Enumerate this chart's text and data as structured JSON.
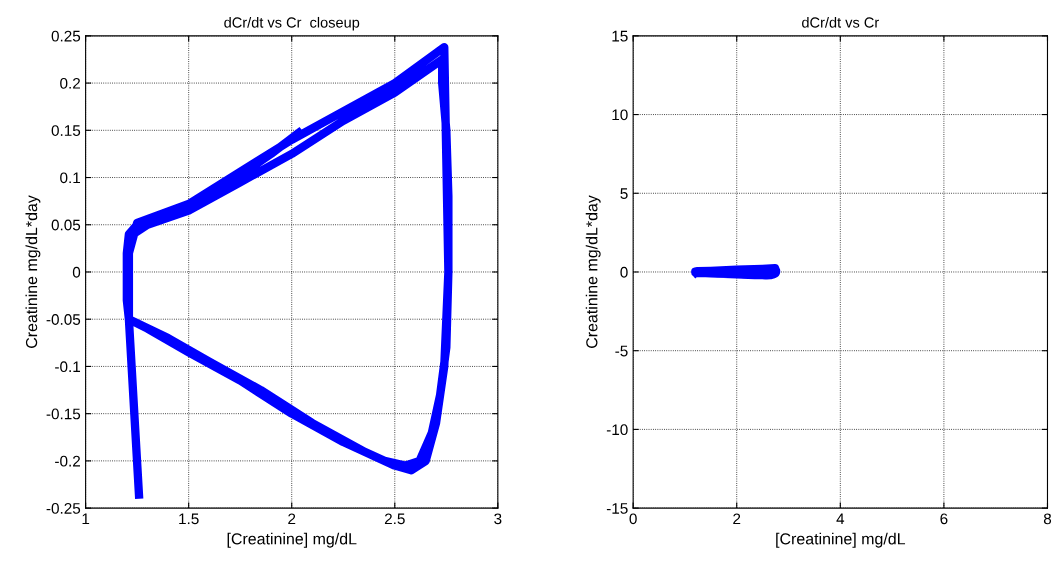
{
  "chart_data": [
    {
      "type": "line",
      "title": "dCr/dt vs Cr  closeup",
      "xlabel": "[Creatinine] mg/dL",
      "ylabel": "Creatinine mg/dL*day",
      "series": [
        {
          "color": "#0000ff",
          "x": [
            2.05,
            1.9,
            1.7,
            1.5,
            1.35,
            1.25,
            1.21,
            1.2,
            1.2,
            1.21,
            1.3,
            1.5,
            1.75,
            2.0,
            2.25,
            2.45,
            2.55,
            2.62,
            2.68,
            2.72,
            2.75,
            2.76,
            2.76,
            2.75,
            2.73,
            2.73,
            2.5,
            2.25,
            2.0,
            1.75,
            1.5,
            1.3,
            1.23,
            1.2,
            1.2,
            1.21,
            1.4,
            1.6,
            1.85,
            2.1,
            2.35,
            2.5,
            2.58,
            2.65,
            2.7,
            2.74,
            2.76,
            2.75,
            2.74,
            2.5,
            2.0,
            1.5,
            1.25,
            1.21,
            1.21,
            1.26
          ],
          "values": [
            0.15,
            0.125,
            0.095,
            0.07,
            0.057,
            0.05,
            0.04,
            0.02,
            -0.03,
            -0.05,
            -0.06,
            -0.085,
            -0.115,
            -0.15,
            -0.18,
            -0.2,
            -0.205,
            -0.2,
            -0.17,
            -0.13,
            -0.08,
            0.0,
            0.08,
            0.15,
            0.2,
            0.225,
            0.19,
            0.16,
            0.125,
            0.095,
            0.065,
            0.05,
            0.04,
            0.02,
            -0.03,
            -0.05,
            -0.07,
            -0.095,
            -0.125,
            -0.16,
            -0.19,
            -0.205,
            -0.21,
            -0.2,
            -0.16,
            -0.1,
            0.0,
            0.12,
            0.238,
            0.2,
            0.14,
            0.072,
            0.052,
            0.02,
            -0.05,
            -0.24
          ]
        }
      ],
      "xlim": [
        1,
        3
      ],
      "xticks": [
        1,
        1.5,
        2,
        2.5,
        3
      ],
      "ylim": [
        -0.25,
        0.25
      ],
      "yticks": [
        -0.25,
        -0.2,
        -0.15,
        -0.1,
        -0.05,
        0,
        0.05,
        0.1,
        0.15,
        0.2,
        0.25
      ],
      "grid": true
    },
    {
      "type": "line",
      "title": "dCr/dt vs Cr",
      "xlabel": "[Creatinine] mg/dL",
      "ylabel": "Creatinine mg/dL*day",
      "series": [
        {
          "color": "#0000ff",
          "x": [
            2.05,
            1.9,
            1.7,
            1.5,
            1.35,
            1.25,
            1.21,
            1.2,
            1.2,
            1.21,
            1.3,
            1.5,
            1.75,
            2.0,
            2.25,
            2.45,
            2.55,
            2.62,
            2.68,
            2.72,
            2.75,
            2.76,
            2.76,
            2.75,
            2.73,
            2.73,
            2.5,
            2.25,
            2.0,
            1.75,
            1.5,
            1.3,
            1.23,
            1.2,
            1.2,
            1.21,
            1.4,
            1.6,
            1.85,
            2.1,
            2.35,
            2.5,
            2.58,
            2.65,
            2.7,
            2.74,
            2.76,
            2.75,
            2.74,
            2.5,
            2.0,
            1.5,
            1.25,
            1.21,
            1.21,
            1.26
          ],
          "values": [
            0.15,
            0.125,
            0.095,
            0.07,
            0.057,
            0.05,
            0.04,
            0.02,
            -0.03,
            -0.05,
            -0.06,
            -0.085,
            -0.115,
            -0.15,
            -0.18,
            -0.2,
            -0.205,
            -0.2,
            -0.17,
            -0.13,
            -0.08,
            0.0,
            0.08,
            0.15,
            0.2,
            0.225,
            0.19,
            0.16,
            0.125,
            0.095,
            0.065,
            0.05,
            0.04,
            0.02,
            -0.03,
            -0.05,
            -0.07,
            -0.095,
            -0.125,
            -0.16,
            -0.19,
            -0.205,
            -0.21,
            -0.2,
            -0.16,
            -0.1,
            0.0,
            0.12,
            0.238,
            0.2,
            0.14,
            0.072,
            0.052,
            0.02,
            -0.05,
            -0.24
          ]
        }
      ],
      "xlim": [
        0,
        8
      ],
      "xticks": [
        0,
        2,
        4,
        6,
        8
      ],
      "ylim": [
        -15,
        15
      ],
      "yticks": [
        -15,
        -10,
        -5,
        0,
        5,
        10,
        15
      ],
      "grid": true
    }
  ]
}
